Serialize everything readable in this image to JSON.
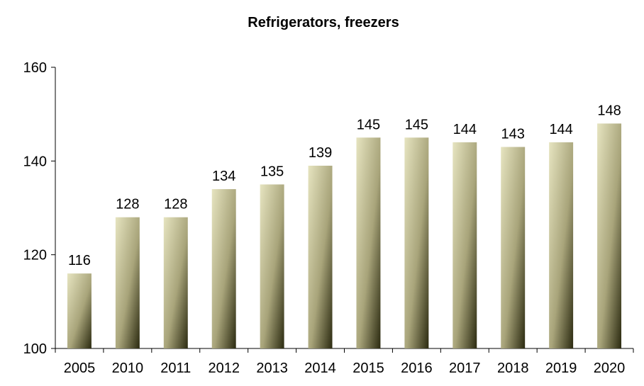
{
  "chart_data": {
    "type": "bar",
    "title": "Refrigerators, freezers",
    "xlabel": "",
    "ylabel": "",
    "categories": [
      "2005",
      "2010",
      "2011",
      "2012",
      "2013",
      "2014",
      "2015",
      "2016",
      "2017",
      "2018",
      "2019",
      "2020"
    ],
    "values": [
      116,
      128,
      128,
      134,
      135,
      139,
      145,
      145,
      144,
      143,
      144,
      148
    ],
    "ylim": [
      100,
      160
    ],
    "yticks": [
      100,
      120,
      140,
      160
    ],
    "grid": false,
    "legend": "none",
    "colors": {
      "bar_light": "#e6e4c0",
      "bar_mid": "#a8a47a",
      "bar_dark": "#2b2a10"
    }
  }
}
